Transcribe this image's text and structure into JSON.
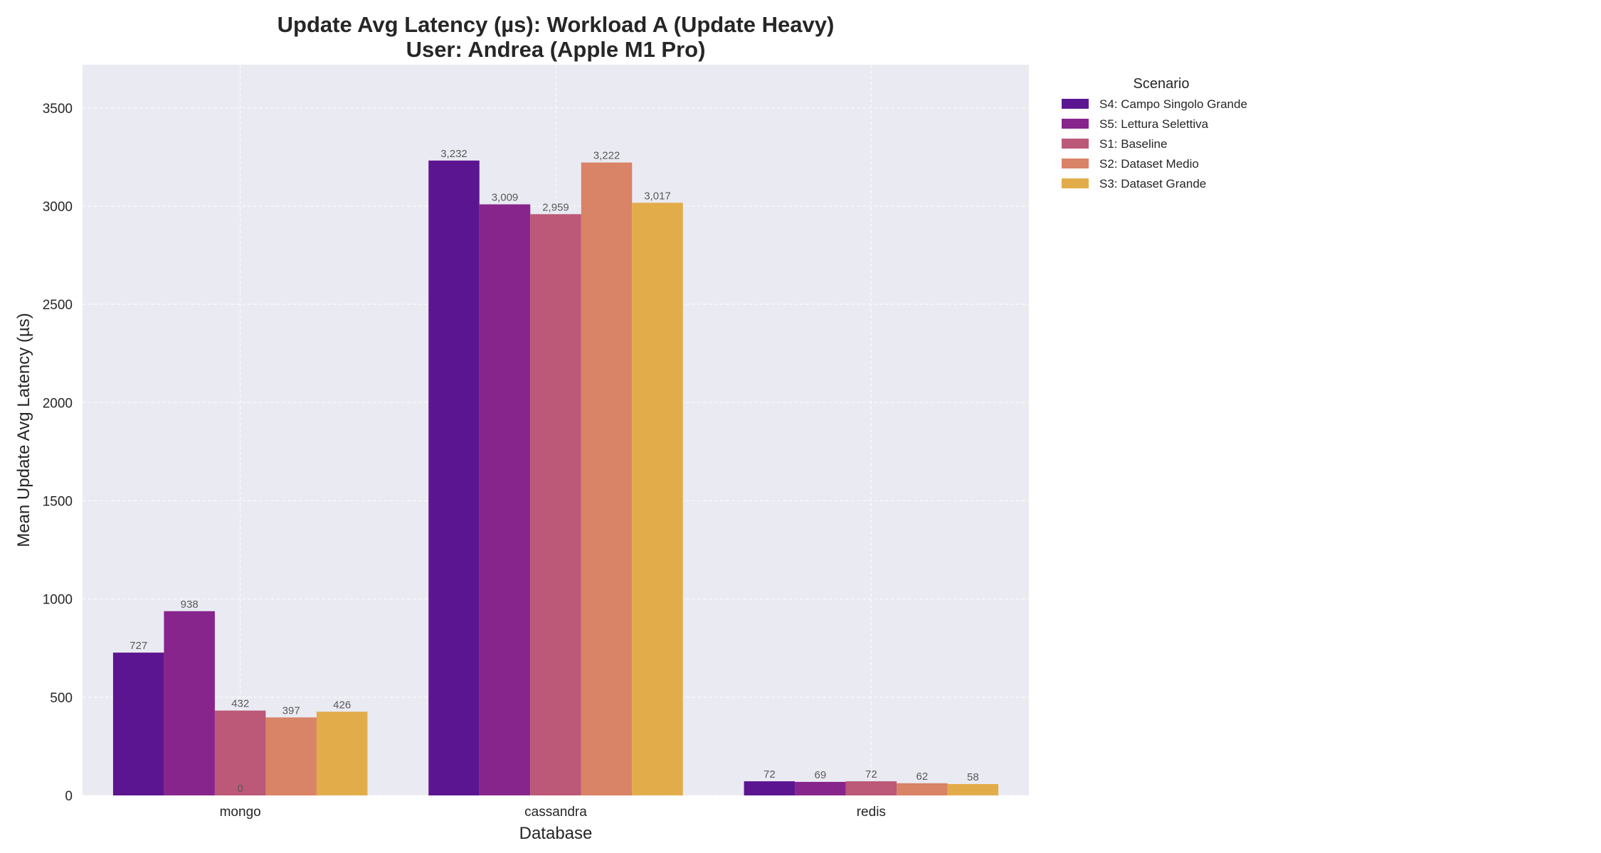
{
  "chart_data": {
    "type": "bar",
    "title": "Update Avg Latency (µs): Workload A (Update Heavy)",
    "subtitle": "User: Andrea (Apple M1 Pro)",
    "xlabel": "Database",
    "ylabel": "Mean Update Avg Latency (µs)",
    "categories": [
      "mongo",
      "cassandra",
      "redis"
    ],
    "ylim": [
      0,
      3720
    ],
    "yticks": [
      0,
      500,
      1000,
      1500,
      2000,
      2500,
      3000,
      3500
    ],
    "grid": true,
    "legend": {
      "title": "Scenario",
      "placement": "outside-top-right"
    },
    "series": [
      {
        "name": "S4: Campo Singolo Grande",
        "color": "#5c1591",
        "values": [
          727,
          3232,
          72
        ],
        "labels": [
          "727",
          "3,232",
          "72"
        ]
      },
      {
        "name": "S5: Lettura Selettiva",
        "color": "#88258d",
        "values": [
          938,
          3009,
          69
        ],
        "labels": [
          "938",
          "3,009",
          "69"
        ]
      },
      {
        "name": "S1: Baseline",
        "color": "#bc5878",
        "values": [
          432,
          2959,
          72
        ],
        "labels": [
          "432",
          "2,959",
          "72"
        ]
      },
      {
        "name": "S2: Dataset Medio",
        "color": "#d98367",
        "values": [
          397,
          3222,
          62
        ],
        "labels": [
          "397",
          "3,222",
          "62"
        ]
      },
      {
        "name": "S3: Dataset Grande",
        "color": "#e3ac4a",
        "values": [
          426,
          3017,
          58
        ],
        "labels": [
          "426",
          "3,017",
          "58"
        ]
      }
    ],
    "annotations": [
      {
        "text": "0",
        "category": "mongo",
        "value": 0
      }
    ]
  }
}
